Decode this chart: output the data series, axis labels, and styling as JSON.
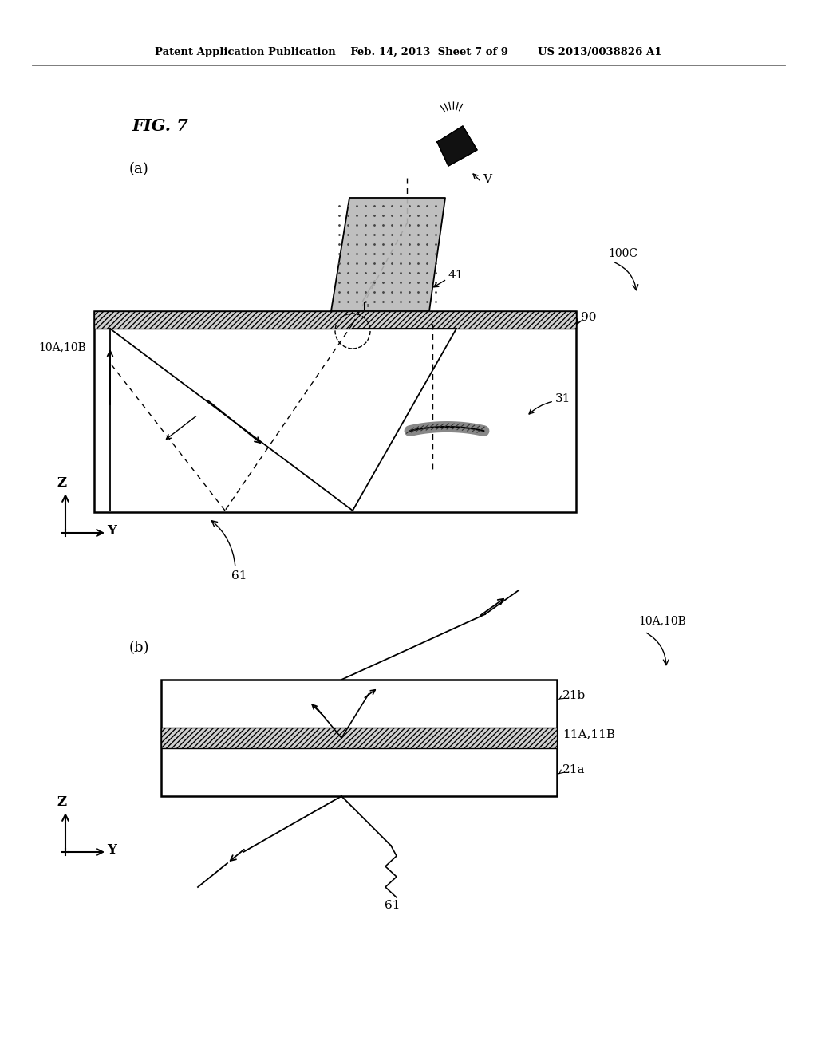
{
  "header": "Patent Application Publication    Feb. 14, 2013  Sheet 7 of 9        US 2013/0038826 A1",
  "fig_label": "FIG. 7",
  "sub_a": "(a)",
  "sub_b": "(b)",
  "label_V": "V",
  "label_E": "E",
  "label_41": "41",
  "label_90": "90",
  "label_31": "31",
  "label_100C": "100C",
  "label_10A10B_a": "10A,10B",
  "label_61_a": "61",
  "label_10A10B_b": "10A,10B",
  "label_21b": "21b",
  "label_11A11B": "11A,11B",
  "label_21a": "21a",
  "label_61_b": "61"
}
